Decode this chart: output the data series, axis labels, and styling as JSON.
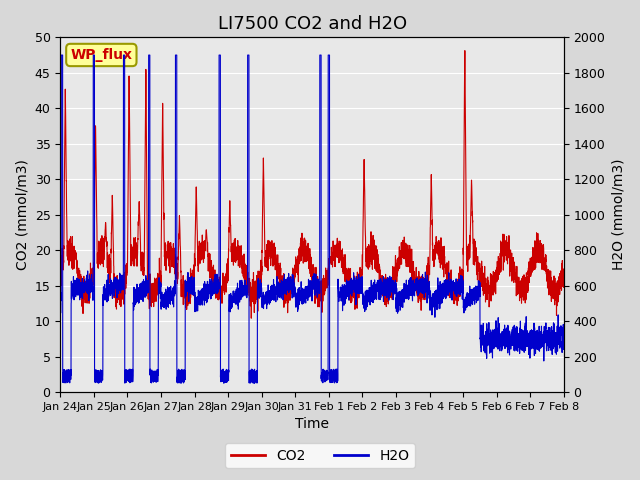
{
  "title": "LI7500 CO2 and H2O",
  "xlabel": "Time",
  "ylabel_left": "CO2 (mmol/m3)",
  "ylabel_right": "H2O (mmol/m3)",
  "xlim": [
    0,
    15
  ],
  "ylim_left": [
    0,
    50
  ],
  "ylim_right": [
    0,
    2000
  ],
  "xtick_labels": [
    "Jan 24",
    "Jan 25",
    "Jan 26",
    "Jan 27",
    "Jan 28",
    "Jan 29",
    "Jan 30",
    "Jan 31",
    "Feb 1",
    "Feb 2",
    "Feb 3",
    "Feb 4",
    "Feb 5",
    "Feb 6",
    "Feb 7",
    "Feb 8"
  ],
  "xtick_positions": [
    0,
    1,
    2,
    3,
    4,
    5,
    6,
    7,
    8,
    9,
    10,
    11,
    12,
    13,
    14,
    15
  ],
  "yticks_left": [
    0,
    5,
    10,
    15,
    20,
    25,
    30,
    35,
    40,
    45,
    50
  ],
  "yticks_right": [
    0,
    200,
    400,
    600,
    800,
    1000,
    1200,
    1400,
    1600,
    1800,
    2000
  ],
  "co2_color": "#cc0000",
  "h2o_color": "#0000cc",
  "background_color": "#e8e8e8",
  "plot_bg_color": "#f0f0f0",
  "legend_co2": "CO2",
  "legend_h2o": "H2O",
  "watermark_text": "WP_flux",
  "watermark_color": "#cc0000",
  "watermark_bg": "#ffff99",
  "title_fontsize": 13,
  "label_fontsize": 10,
  "tick_fontsize": 9
}
